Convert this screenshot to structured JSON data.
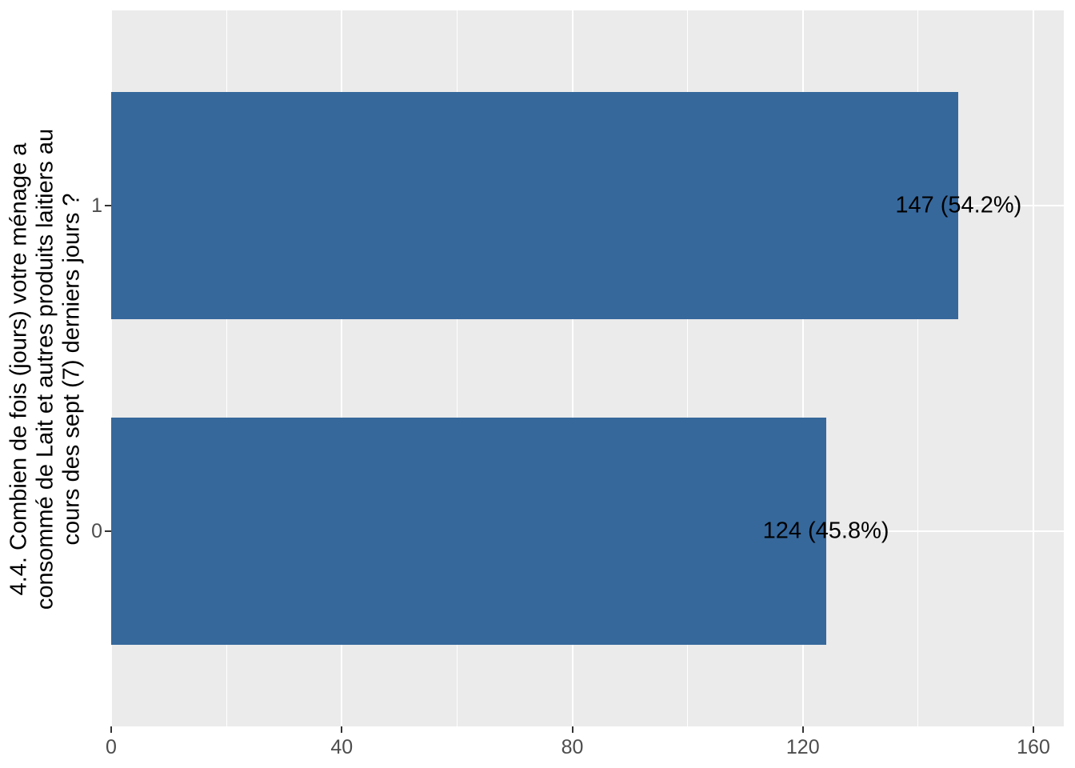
{
  "chart_data": {
    "type": "bar",
    "orientation": "horizontal",
    "title": "",
    "xlabel": "",
    "ylabel": "4.4. Combien de fois (jours) votre ménage a consommé de Lait et autres produits laitiers au cours des sept (7) derniers jours ?",
    "ylabel_lines": [
      "4.4. Combien de fois (jours) votre ménage a",
      "consommé de Lait et autres produits laitiers au",
      "cours des sept (7) derniers jours ?"
    ],
    "categories": [
      "1",
      "0"
    ],
    "values": [
      147,
      124
    ],
    "bar_labels": [
      "147 (54.2%)",
      "124 (45.8%)"
    ],
    "percentages": [
      54.2,
      45.8
    ],
    "x_ticks": [
      0,
      40,
      80,
      120,
      160
    ],
    "x_minor_ticks": [
      20,
      60,
      100,
      140
    ],
    "xlim": [
      0,
      165
    ],
    "grid": true,
    "legend": null,
    "colors": {
      "bar_fill": "#36689C",
      "panel_background": "#EBEBEB",
      "grid": "#FFFFFF",
      "tick_label": "#4D4D4D",
      "tick_mark": "#333333",
      "text": "#000000",
      "figure_background": "#FFFFFF"
    }
  }
}
